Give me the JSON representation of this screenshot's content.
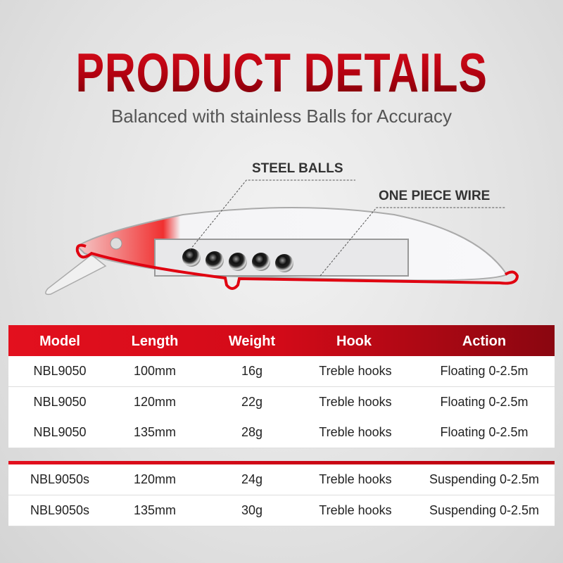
{
  "title": "PRODUCT DETAILS",
  "subtitle": "Balanced with stainless Balls for Accuracy",
  "callouts": {
    "steel_balls": "STEEL BALLS",
    "wire": "ONE PIECE WIRE"
  },
  "colors": {
    "accent": "#d20a18",
    "dark_red": "#8a0610"
  },
  "table": {
    "headers": [
      "Model",
      "Length",
      "Weight",
      "Hook",
      "Action"
    ],
    "group1": [
      [
        "NBL9050",
        "100mm",
        "16g",
        "Treble hooks",
        "Floating 0-2.5m"
      ],
      [
        "NBL9050",
        "120mm",
        "22g",
        "Treble hooks",
        "Floating 0-2.5m"
      ],
      [
        "NBL9050",
        "135mm",
        "28g",
        "Treble hooks",
        "Floating 0-2.5m"
      ]
    ],
    "group2": [
      [
        "NBL9050s",
        "120mm",
        "24g",
        "Treble hooks",
        "Suspending 0-2.5m"
      ],
      [
        "NBL9050s",
        "135mm",
        "30g",
        "Treble hooks",
        "Suspending 0-2.5m"
      ]
    ]
  }
}
